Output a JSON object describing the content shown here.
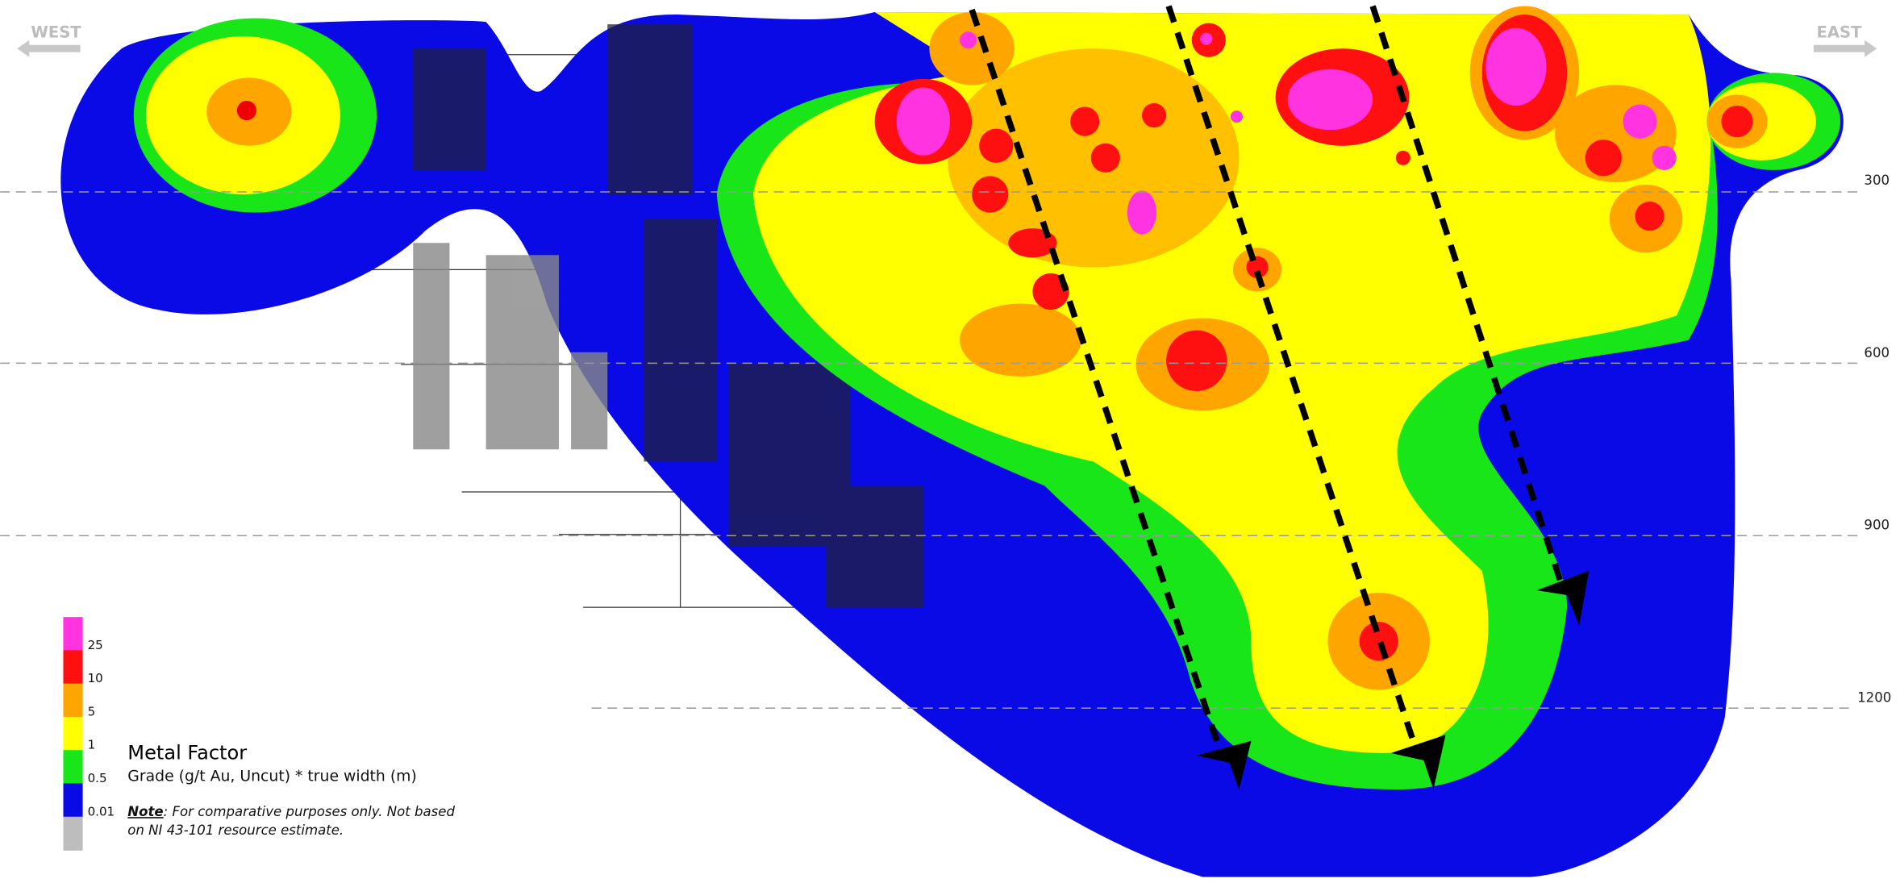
{
  "directions": {
    "west": "WEST",
    "east": "EAST"
  },
  "depth_labels": [
    "300",
    "600",
    "900",
    "1200"
  ],
  "legend": {
    "title": "Metal Factor",
    "subtitle": "Grade (g/t Au, Uncut) * true width (m)",
    "note_label": "Note",
    "note_line1": ": For comparative purposes only. Not based",
    "note_line2": "on NI 43-101 resource estimate.",
    "labels": [
      "25",
      "10",
      "5",
      "1",
      "0.5",
      "0.01"
    ],
    "swatches": [
      "#ff33e0",
      "#ff1010",
      "#ffa500",
      "#ffff00",
      "#19e619",
      "#0a0ae6",
      "#bdbdbd"
    ]
  }
}
